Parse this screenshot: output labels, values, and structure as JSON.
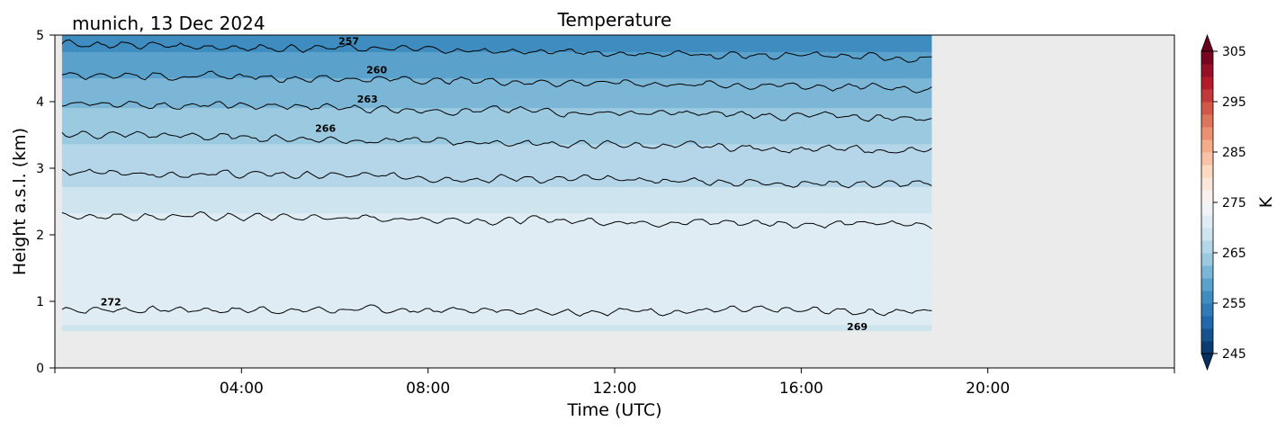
{
  "chart_data": {
    "type": "heatmap",
    "title": "Temperature",
    "subtitle": "munich, 13 Dec 2024",
    "xlabel": "Time (UTC)",
    "ylabel": "Height a.s.l. (km)",
    "xlim_hours": [
      0,
      24
    ],
    "ylim": [
      0,
      5
    ],
    "x_ticks": [
      {
        "hour": 4,
        "label": "04:00"
      },
      {
        "hour": 8,
        "label": "08:00"
      },
      {
        "hour": 12,
        "label": "12:00"
      },
      {
        "hour": 16,
        "label": "16:00"
      },
      {
        "hour": 20,
        "label": "20:00"
      }
    ],
    "y_ticks": [
      {
        "value": 0,
        "label": "0"
      },
      {
        "value": 1,
        "label": "1"
      },
      {
        "value": 2,
        "label": "2"
      },
      {
        "value": 3,
        "label": "3"
      },
      {
        "value": 4,
        "label": "4"
      },
      {
        "value": 5,
        "label": "5"
      }
    ],
    "data_extent": {
      "time_start_hour": 0.15,
      "time_end_hour": 18.8,
      "height_min_km": 0.55,
      "height_max_km": 5.0
    },
    "no_data_color": "#ebebeb",
    "colormap": "RdBu_r",
    "colorbar": {
      "label": "K",
      "min": 245,
      "max": 305,
      "step": 2.5,
      "extend": "both",
      "ticks": [
        {
          "value": 245,
          "label": "245"
        },
        {
          "value": 255,
          "label": "255"
        },
        {
          "value": 265,
          "label": "265"
        },
        {
          "value": 275,
          "label": "275"
        },
        {
          "value": 285,
          "label": "285"
        },
        {
          "value": 295,
          "label": "295"
        },
        {
          "value": 305,
          "label": "305"
        }
      ]
    },
    "contours": [
      {
        "level": 272,
        "label": "272",
        "height_start_km": 0.88,
        "height_end_km": 0.85,
        "label_hour": 1.2,
        "label_height_km": 0.99
      },
      {
        "level": 269,
        "label": "269",
        "height_start_km": 2.3,
        "height_end_km": 2.15,
        "label_hour": 17.2,
        "label_height_km": 0.62
      },
      {
        "level": 266,
        "label": "",
        "height_start_km": 2.95,
        "height_end_km": 2.75,
        "label_hour": null,
        "label_height_km": null
      },
      {
        "level": 266,
        "label": "266",
        "height_start_km": 3.52,
        "height_end_km": 3.25,
        "label_hour": 5.8,
        "label_height_km": 3.6
      },
      {
        "level": 263,
        "label": "263",
        "height_start_km": 3.98,
        "height_end_km": 3.75,
        "label_hour": 6.7,
        "label_height_km": 4.04
      },
      {
        "level": 260,
        "label": "260",
        "height_start_km": 4.42,
        "height_end_km": 4.2,
        "label_hour": 6.9,
        "label_height_km": 4.48
      },
      {
        "level": 257,
        "label": "257",
        "height_start_km": 4.87,
        "height_end_km": 4.65,
        "label_hour": 6.3,
        "label_height_km": 4.91
      }
    ],
    "field_bands": [
      {
        "height_km": 0.55,
        "value": 269.5
      },
      {
        "height_km": 1.0,
        "value": 271.5
      },
      {
        "height_km": 1.6,
        "value": 272.0
      },
      {
        "height_km": 2.2,
        "value": 271.0
      },
      {
        "height_km": 2.5,
        "value": 268.5
      },
      {
        "height_km": 3.0,
        "value": 266.5
      },
      {
        "height_km": 3.5,
        "value": 264.5
      },
      {
        "height_km": 4.0,
        "value": 262.0
      },
      {
        "height_km": 4.5,
        "value": 259.0
      },
      {
        "height_km": 5.0,
        "value": 256.0
      }
    ]
  }
}
